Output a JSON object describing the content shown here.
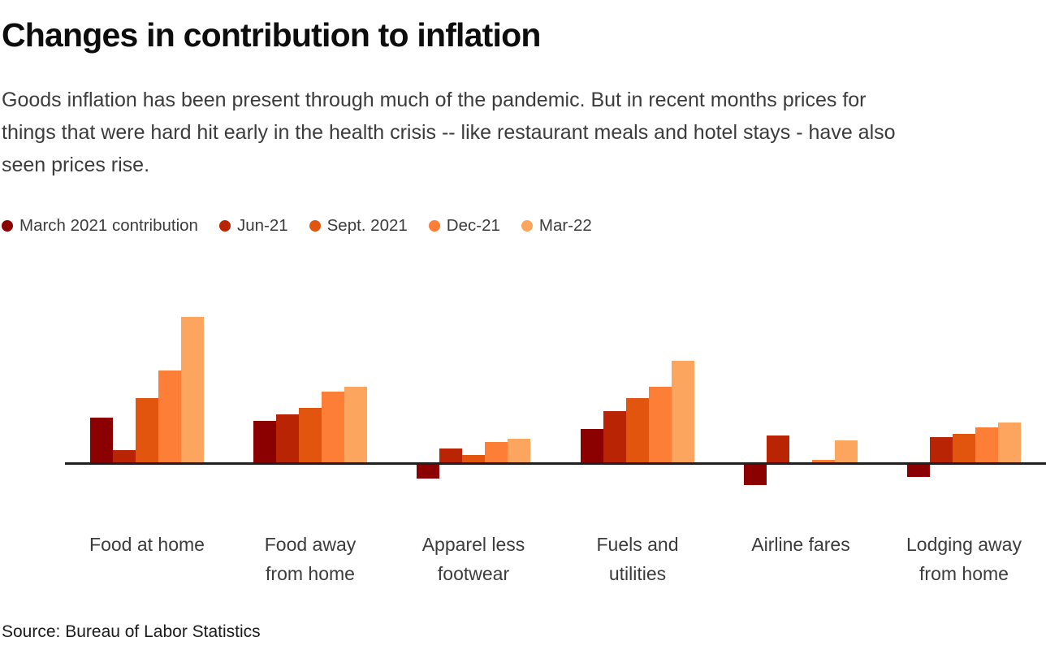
{
  "header": {
    "title": "Changes in contribution to inflation",
    "subtitle_lines": [
      "Goods inflation has been present through much of the pandemic. But in recent months prices for",
      "things that were hard hit early in the health crisis -- like restaurant meals and hotel stays - have also",
      "seen prices rise."
    ]
  },
  "source_note": "Source: Bureau of Labor Statistics",
  "colors": {
    "axis": "#1f1f1f",
    "text_primary": "#0d0d0d",
    "text_secondary": "#3c3c3c"
  },
  "chart_data": {
    "type": "bar",
    "title": "Changes in contribution to inflation",
    "xlabel": "",
    "ylabel": "",
    "ylim": [
      -0.2,
      1.0
    ],
    "grid": false,
    "legend_position": "top",
    "categories": [
      "Food at home",
      "Food away from home",
      "Apparel less footwear",
      "Fuels and utilities",
      "Airline fares",
      "Lodging away from home"
    ],
    "category_label_lines": [
      [
        "Food at home"
      ],
      [
        "Food away",
        "from home"
      ],
      [
        "Apparel less",
        "footwear"
      ],
      [
        "Fuels and",
        "utilities"
      ],
      [
        "Airline fares"
      ],
      [
        "Lodging away",
        "from home"
      ]
    ],
    "series": [
      {
        "name": "March 2021 contribution",
        "color": "#8b0000",
        "values": [
          0.28,
          0.26,
          -0.09,
          0.21,
          -0.13,
          -0.08
        ]
      },
      {
        "name": "Jun-21",
        "color": "#b92504",
        "values": [
          0.08,
          0.3,
          0.09,
          0.32,
          0.17,
          0.16
        ]
      },
      {
        "name": "Sept. 2021",
        "color": "#e1550f",
        "values": [
          0.4,
          0.34,
          0.05,
          0.4,
          0.0,
          0.18
        ]
      },
      {
        "name": "Dec-21",
        "color": "#fc7e37",
        "values": [
          0.57,
          0.44,
          0.13,
          0.47,
          0.02,
          0.22
        ]
      },
      {
        "name": "Mar-22",
        "color": "#fca55f",
        "values": [
          0.9,
          0.47,
          0.15,
          0.63,
          0.14,
          0.25
        ]
      }
    ]
  }
}
